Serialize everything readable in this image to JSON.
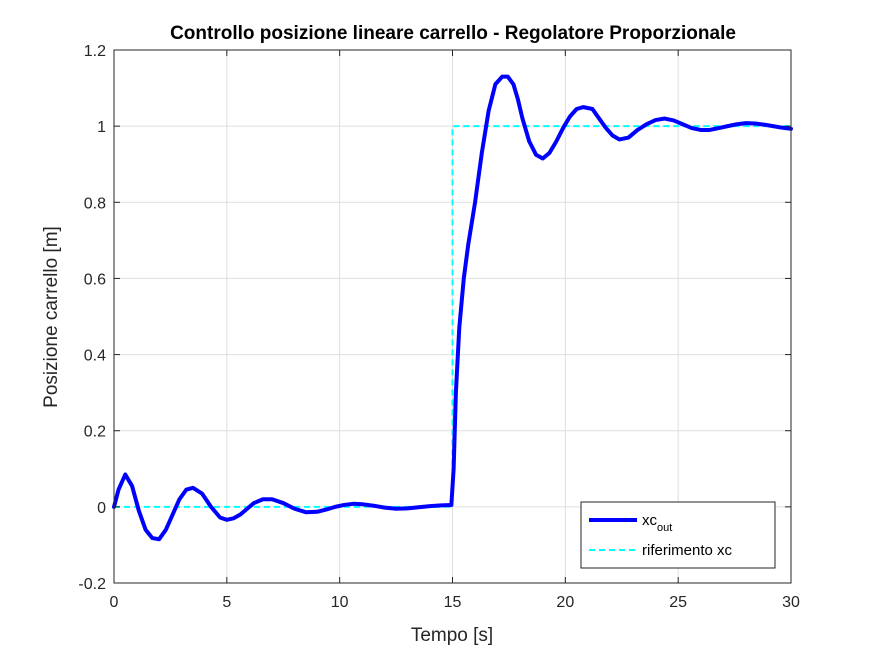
{
  "chart_data": {
    "type": "line",
    "title": "Controllo posizione lineare carrello - Regolatore Proporzionale",
    "xlabel": "Tempo [s]",
    "ylabel": "Posizione carrello [m]",
    "xlim": [
      0,
      30
    ],
    "ylim": [
      -0.2,
      1.2
    ],
    "xticks": [
      0,
      5,
      10,
      15,
      20,
      25,
      30
    ],
    "xtick_labels": [
      "0",
      "5",
      "10",
      "15",
      "20",
      "25",
      "30"
    ],
    "yticks": [
      -0.2,
      0,
      0.2,
      0.4,
      0.6,
      0.8,
      1,
      1.2
    ],
    "ytick_labels": [
      "-0.2",
      "0",
      "0.2",
      "0.4",
      "0.6",
      "0.8",
      "1",
      "1.2"
    ],
    "grid": true,
    "legend_position": "bottom-right",
    "series": [
      {
        "name": "xc_out",
        "legend_label": {
          "main": "xc",
          "sub": "out"
        },
        "color": "#0000ff",
        "style": "solid",
        "width": 4,
        "x": [
          0,
          0.2,
          0.5,
          0.8,
          1.1,
          1.4,
          1.7,
          2.0,
          2.3,
          2.6,
          2.9,
          3.2,
          3.5,
          3.9,
          4.3,
          4.7,
          5.0,
          5.3,
          5.6,
          5.9,
          6.2,
          6.6,
          7.0,
          7.5,
          8.0,
          8.5,
          9.0,
          9.4,
          9.8,
          10.2,
          10.6,
          11.0,
          11.5,
          12.0,
          12.5,
          13.0,
          13.5,
          14.0,
          14.5,
          14.95,
          15.05,
          15.15,
          15.3,
          15.5,
          15.7,
          16.0,
          16.3,
          16.6,
          16.9,
          17.2,
          17.45,
          17.7,
          17.9,
          18.1,
          18.4,
          18.7,
          19.0,
          19.3,
          19.6,
          19.9,
          20.2,
          20.5,
          20.8,
          21.2,
          21.5,
          21.8,
          22.1,
          22.4,
          22.8,
          23.2,
          23.6,
          24.0,
          24.4,
          24.8,
          25.2,
          25.6,
          26.0,
          26.4,
          26.8,
          27.2,
          27.6,
          28.0,
          28.4,
          28.8,
          29.2,
          29.6,
          30.0
        ],
        "y": [
          0,
          0.045,
          0.085,
          0.055,
          -0.01,
          -0.06,
          -0.082,
          -0.085,
          -0.06,
          -0.02,
          0.02,
          0.045,
          0.05,
          0.035,
          0.0,
          -0.028,
          -0.034,
          -0.03,
          -0.02,
          -0.005,
          0.01,
          0.02,
          0.02,
          0.01,
          -0.005,
          -0.014,
          -0.013,
          -0.007,
          0.0,
          0.005,
          0.008,
          0.007,
          0.003,
          -0.002,
          -0.005,
          -0.004,
          -0.001,
          0.002,
          0.004,
          0.005,
          0.1,
          0.3,
          0.47,
          0.6,
          0.69,
          0.8,
          0.93,
          1.04,
          1.11,
          1.13,
          1.13,
          1.11,
          1.07,
          1.02,
          0.96,
          0.925,
          0.915,
          0.93,
          0.96,
          0.995,
          1.025,
          1.045,
          1.05,
          1.045,
          1.02,
          0.995,
          0.975,
          0.965,
          0.97,
          0.99,
          1.005,
          1.016,
          1.02,
          1.015,
          1.005,
          0.995,
          0.99,
          0.99,
          0.995,
          1.0,
          1.005,
          1.008,
          1.007,
          1.004,
          1.0,
          0.996,
          0.993
        ]
      },
      {
        "name": "riferimento xc",
        "color": "#00ffff",
        "style": "dashed",
        "width": 2,
        "x": [
          0,
          15,
          15,
          30
        ],
        "y": [
          0,
          0,
          1,
          1
        ]
      }
    ]
  }
}
